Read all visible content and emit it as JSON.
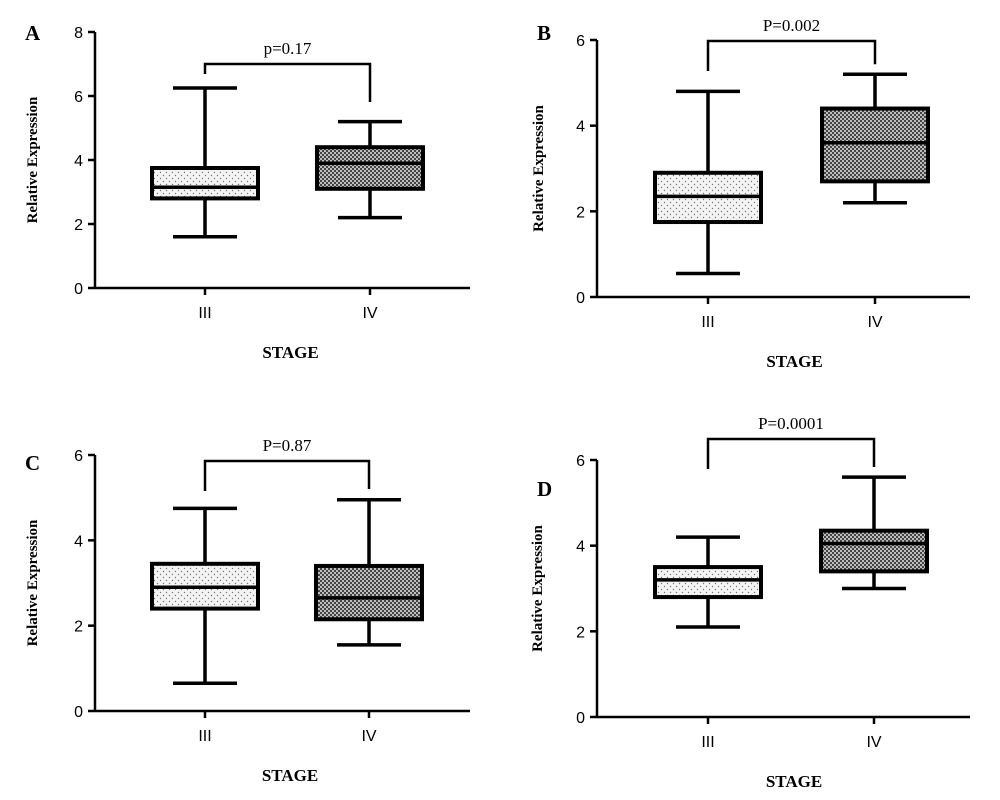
{
  "chart_data": [
    {
      "type": "box",
      "panel_label": "A",
      "ylabel": "Relative Expression",
      "xlabel": "STAGE",
      "ylim": [
        0,
        8
      ],
      "yticks": [
        0,
        2,
        4,
        6,
        8
      ],
      "categories": [
        "III",
        "IV"
      ],
      "boxes": [
        {
          "category": "III",
          "min": 1.6,
          "q1": 2.8,
          "median": 3.15,
          "q3": 3.75,
          "max": 6.25,
          "pattern": "dots"
        },
        {
          "category": "IV",
          "min": 2.2,
          "q1": 3.1,
          "median": 3.9,
          "q3": 4.4,
          "max": 5.2,
          "pattern": "check"
        }
      ],
      "annotation": "p=0.17"
    },
    {
      "type": "box",
      "panel_label": "B",
      "ylabel": "Relative Expression",
      "xlabel": "STAGE",
      "ylim": [
        0,
        6
      ],
      "yticks": [
        0,
        2,
        4,
        6
      ],
      "categories": [
        "III",
        "IV"
      ],
      "boxes": [
        {
          "category": "III",
          "min": 0.55,
          "q1": 1.75,
          "median": 2.35,
          "q3": 2.9,
          "max": 4.8,
          "pattern": "dots"
        },
        {
          "category": "IV",
          "min": 2.2,
          "q1": 2.7,
          "median": 3.6,
          "q3": 4.4,
          "max": 5.2,
          "pattern": "check"
        }
      ],
      "annotation": "P=0.002"
    },
    {
      "type": "box",
      "panel_label": "C",
      "ylabel": "Relative Expression",
      "xlabel": "STAGE",
      "ylim": [
        0,
        6
      ],
      "yticks": [
        0,
        2,
        4,
        6
      ],
      "categories": [
        "III",
        "IV"
      ],
      "boxes": [
        {
          "category": "III",
          "min": 0.65,
          "q1": 2.4,
          "median": 2.9,
          "q3": 3.45,
          "max": 4.75,
          "pattern": "dots"
        },
        {
          "category": "IV",
          "min": 1.55,
          "q1": 2.15,
          "median": 2.65,
          "q3": 3.4,
          "max": 4.95,
          "pattern": "check"
        }
      ],
      "annotation": "P=0.87"
    },
    {
      "type": "box",
      "panel_label": "D",
      "ylabel": "Relative Expression",
      "xlabel": "STAGE",
      "ylim": [
        0,
        6
      ],
      "yticks": [
        0,
        2,
        4,
        6
      ],
      "categories": [
        "III",
        "IV"
      ],
      "boxes": [
        {
          "category": "III",
          "min": 2.1,
          "q1": 2.8,
          "median": 3.2,
          "q3": 3.5,
          "max": 4.2,
          "pattern": "dots"
        },
        {
          "category": "IV",
          "min": 3.0,
          "q1": 3.4,
          "median": 4.05,
          "q3": 4.35,
          "max": 5.6,
          "pattern": "check"
        }
      ],
      "annotation": "P=0.0001"
    }
  ]
}
